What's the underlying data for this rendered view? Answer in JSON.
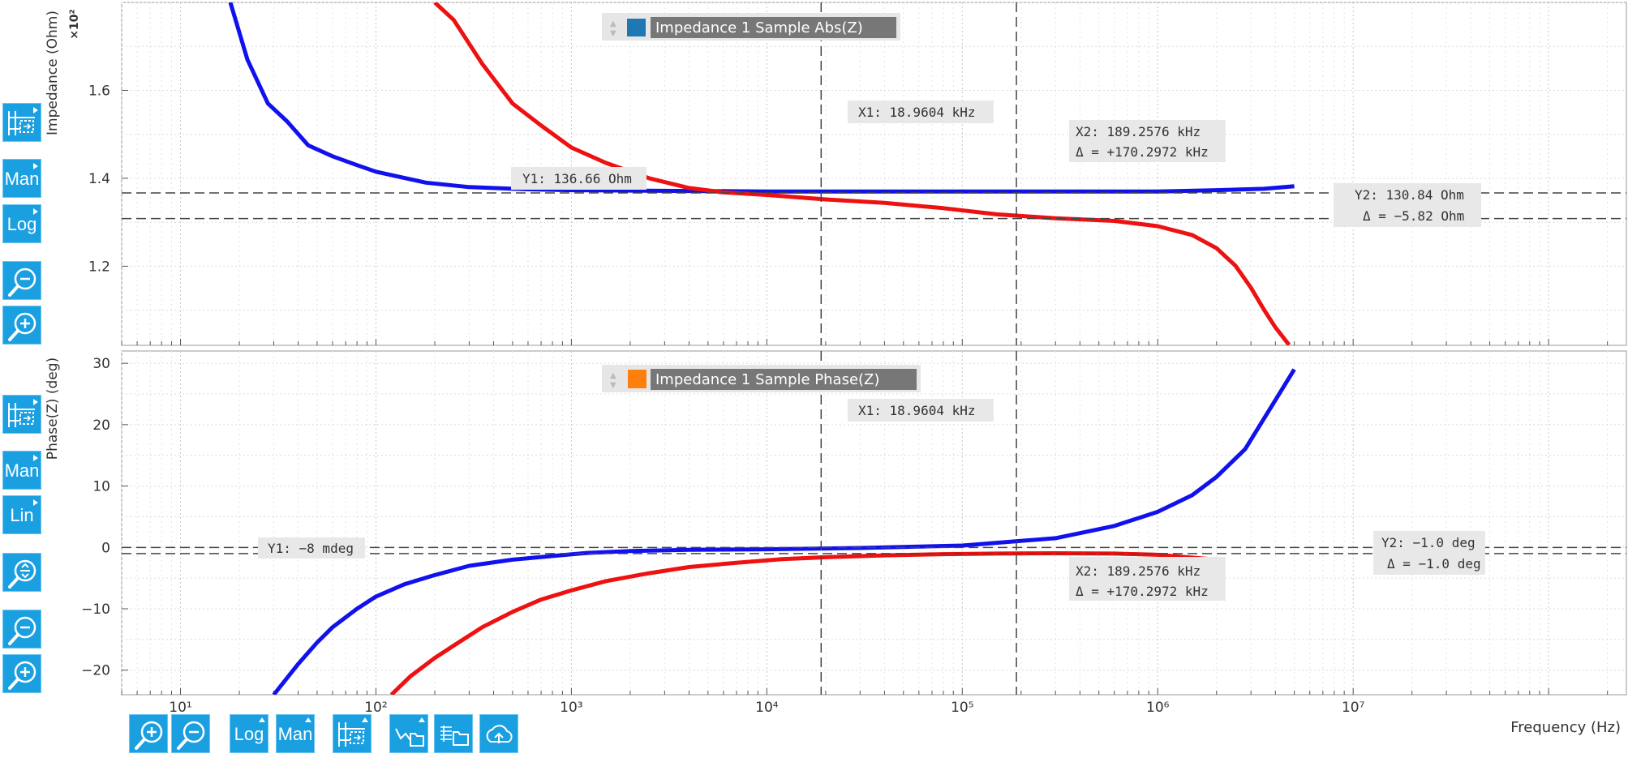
{
  "colors": {
    "accent": "#1a9fe0",
    "series_red": "#ee1111",
    "series_blue": "#1111ee",
    "legend_blue": "#1f77b4",
    "legend_orange": "#ff7f0e"
  },
  "top_panel": {
    "ylabel": "Impedance (Ohm)",
    "multiplier": "×10²",
    "legend": "Impedance 1 Sample Abs(Z)",
    "cursor_x1": "X1: 18.9604 kHz",
    "cursor_x2": "X2: 189.2576 kHz",
    "cursor_x2_delta": "Δ = +170.2972 kHz",
    "cursor_y1": "Y1: 136.66 Ohm",
    "cursor_y2": "Y2: 130.84 Ohm",
    "cursor_y2_delta": "Δ = −5.82 Ohm"
  },
  "bottom_panel": {
    "ylabel": "Phase(Z) (deg)",
    "legend": "Impedance 1 Sample Phase(Z)",
    "cursor_x1": "X1: 18.9604 kHz",
    "cursor_x2": "X2: 189.2576 kHz",
    "cursor_x2_delta": "Δ = +170.2972 kHz",
    "cursor_y1": "Y1: −8 mdeg",
    "cursor_y2": "Y2: −1.0 deg",
    "cursor_y2_delta": "Δ = −1.0 deg"
  },
  "xlabel": "Frequency (Hz)",
  "left_toolbar_top": [
    {
      "name": "fit-settings-button",
      "icon": "grid-fit-icon",
      "label": ""
    },
    {
      "name": "manual-range-button",
      "icon": "",
      "label": "Man"
    },
    {
      "name": "log-scale-button",
      "icon": "",
      "label": "Log"
    },
    {
      "name": "zoom-out-button",
      "icon": "zoom-out-icon",
      "label": ""
    },
    {
      "name": "zoom-in-button",
      "icon": "zoom-in-icon",
      "label": ""
    }
  ],
  "left_toolbar_bottom": [
    {
      "name": "fit-settings-button",
      "icon": "grid-fit-icon",
      "label": ""
    },
    {
      "name": "manual-range-button",
      "icon": "",
      "label": "Man"
    },
    {
      "name": "linear-scale-button",
      "icon": "",
      "label": "Lin"
    },
    {
      "name": "zoom-fit-button",
      "icon": "zoom-fit-icon",
      "label": ""
    },
    {
      "name": "zoom-out-button",
      "icon": "zoom-out-icon",
      "label": ""
    },
    {
      "name": "zoom-in-button",
      "icon": "zoom-in-icon",
      "label": ""
    }
  ],
  "bottom_toolbar": [
    {
      "name": "x-zoom-in-button",
      "icon": "zoom-in-icon",
      "label": ""
    },
    {
      "name": "x-zoom-out-button",
      "icon": "zoom-out-icon",
      "label": ""
    },
    {
      "name": "x-log-scale-button",
      "icon": "",
      "label": "Log"
    },
    {
      "name": "x-manual-range-button",
      "icon": "",
      "label": "Man"
    },
    {
      "name": "x-fit-settings-button",
      "icon": "grid-fit-icon",
      "label": ""
    },
    {
      "name": "save-plot-button",
      "icon": "plot-folder-icon",
      "label": ""
    },
    {
      "name": "save-table-button",
      "icon": "table-folder-icon",
      "label": ""
    },
    {
      "name": "upload-cloud-button",
      "icon": "cloud-upload-icon",
      "label": ""
    }
  ],
  "chart_data": [
    {
      "type": "line",
      "xscale": "log",
      "xlim": [
        5,
        250000000
      ],
      "ylim": [
        102,
        180
      ],
      "ytick_labels": [
        "1.2",
        "1.4",
        "1.6"
      ],
      "yticks": [
        120,
        140,
        160
      ],
      "ylabel": "Impedance (Ohm)",
      "xlabel": "Frequency (Hz)",
      "grid": true,
      "cursors": {
        "x1": 18960.4,
        "x2": 189257.6,
        "y1": 136.66,
        "y2": 130.84
      },
      "series": [
        {
          "color": "#1111ee",
          "x": [
            18,
            22,
            28,
            35,
            45,
            60,
            80,
            100,
            180,
            300,
            600,
            1000,
            2000,
            5000,
            10000,
            30000,
            100000,
            300000,
            1000000,
            2000000,
            3500000,
            5000000
          ],
          "y": [
            180,
            167,
            157,
            153,
            147.5,
            145,
            143,
            141.5,
            139,
            138,
            137.5,
            137.3,
            137.2,
            137.1,
            137.0,
            137.0,
            137.0,
            137.0,
            137.0,
            137.3,
            137.6,
            138.2
          ]
        },
        {
          "color": "#ee1111",
          "x": [
            200,
            250,
            350,
            500,
            700,
            1000,
            1500,
            2500,
            4000,
            6000,
            10000,
            20000,
            40000,
            80000,
            150000,
            300000,
            600000,
            1000000,
            1500000,
            2000000,
            2500000,
            3000000,
            3500000,
            4000000,
            4700000
          ],
          "y": [
            180,
            176,
            166,
            157,
            152,
            147,
            143.5,
            140,
            137.8,
            136.8,
            136.2,
            135.2,
            134.4,
            133.2,
            131.8,
            130.9,
            130.3,
            129.1,
            127.1,
            124.1,
            120.1,
            115.1,
            110.1,
            106.1,
            102.1
          ]
        }
      ]
    },
    {
      "type": "line",
      "xscale": "log",
      "xlim": [
        5,
        250000000
      ],
      "ylim": [
        -24,
        32
      ],
      "yticks": [
        -20,
        -10,
        0,
        10,
        20,
        30
      ],
      "xticks": [
        10,
        100,
        1000,
        10000,
        100000,
        1000000,
        10000000
      ],
      "xtick_labels": [
        "10¹",
        "10²",
        "10³",
        "10⁴",
        "10⁵",
        "10⁶",
        "10⁷"
      ],
      "ylabel": "Phase(Z) (deg)",
      "xlabel": "Frequency (Hz)",
      "grid": true,
      "cursors": {
        "x1": 18960.4,
        "x2": 189257.6,
        "y1": -0.008,
        "y2": -1.0
      },
      "series": [
        {
          "color": "#1111ee",
          "x": [
            30,
            40,
            50,
            60,
            80,
            100,
            140,
            200,
            300,
            500,
            800,
            1200,
            2000,
            4000,
            10000,
            30000,
            100000,
            300000,
            600000,
            1000000,
            1500000,
            2000000,
            2800000,
            4000000,
            5000000
          ],
          "y": [
            -24,
            -19,
            -15.5,
            -13,
            -10,
            -8,
            -6,
            -4.5,
            -3,
            -2,
            -1.4,
            -0.9,
            -0.6,
            -0.4,
            -0.3,
            -0.1,
            0.3,
            1.5,
            3.5,
            5.8,
            8.5,
            11.5,
            16,
            24,
            29
          ]
        },
        {
          "color": "#ee1111",
          "x": [
            120,
            150,
            200,
            250,
            350,
            500,
            700,
            1000,
            1500,
            2500,
            4000,
            7000,
            12000,
            20000,
            40000,
            80000,
            150000,
            300000,
            600000,
            1000000,
            2000000
          ],
          "y": [
            -24,
            -21,
            -18,
            -16,
            -13,
            -10.5,
            -8.5,
            -7,
            -5.5,
            -4.2,
            -3.2,
            -2.5,
            -1.9,
            -1.6,
            -1.3,
            -1.1,
            -1.0,
            -0.95,
            -1.0,
            -1.2,
            -2.0
          ]
        }
      ]
    }
  ]
}
